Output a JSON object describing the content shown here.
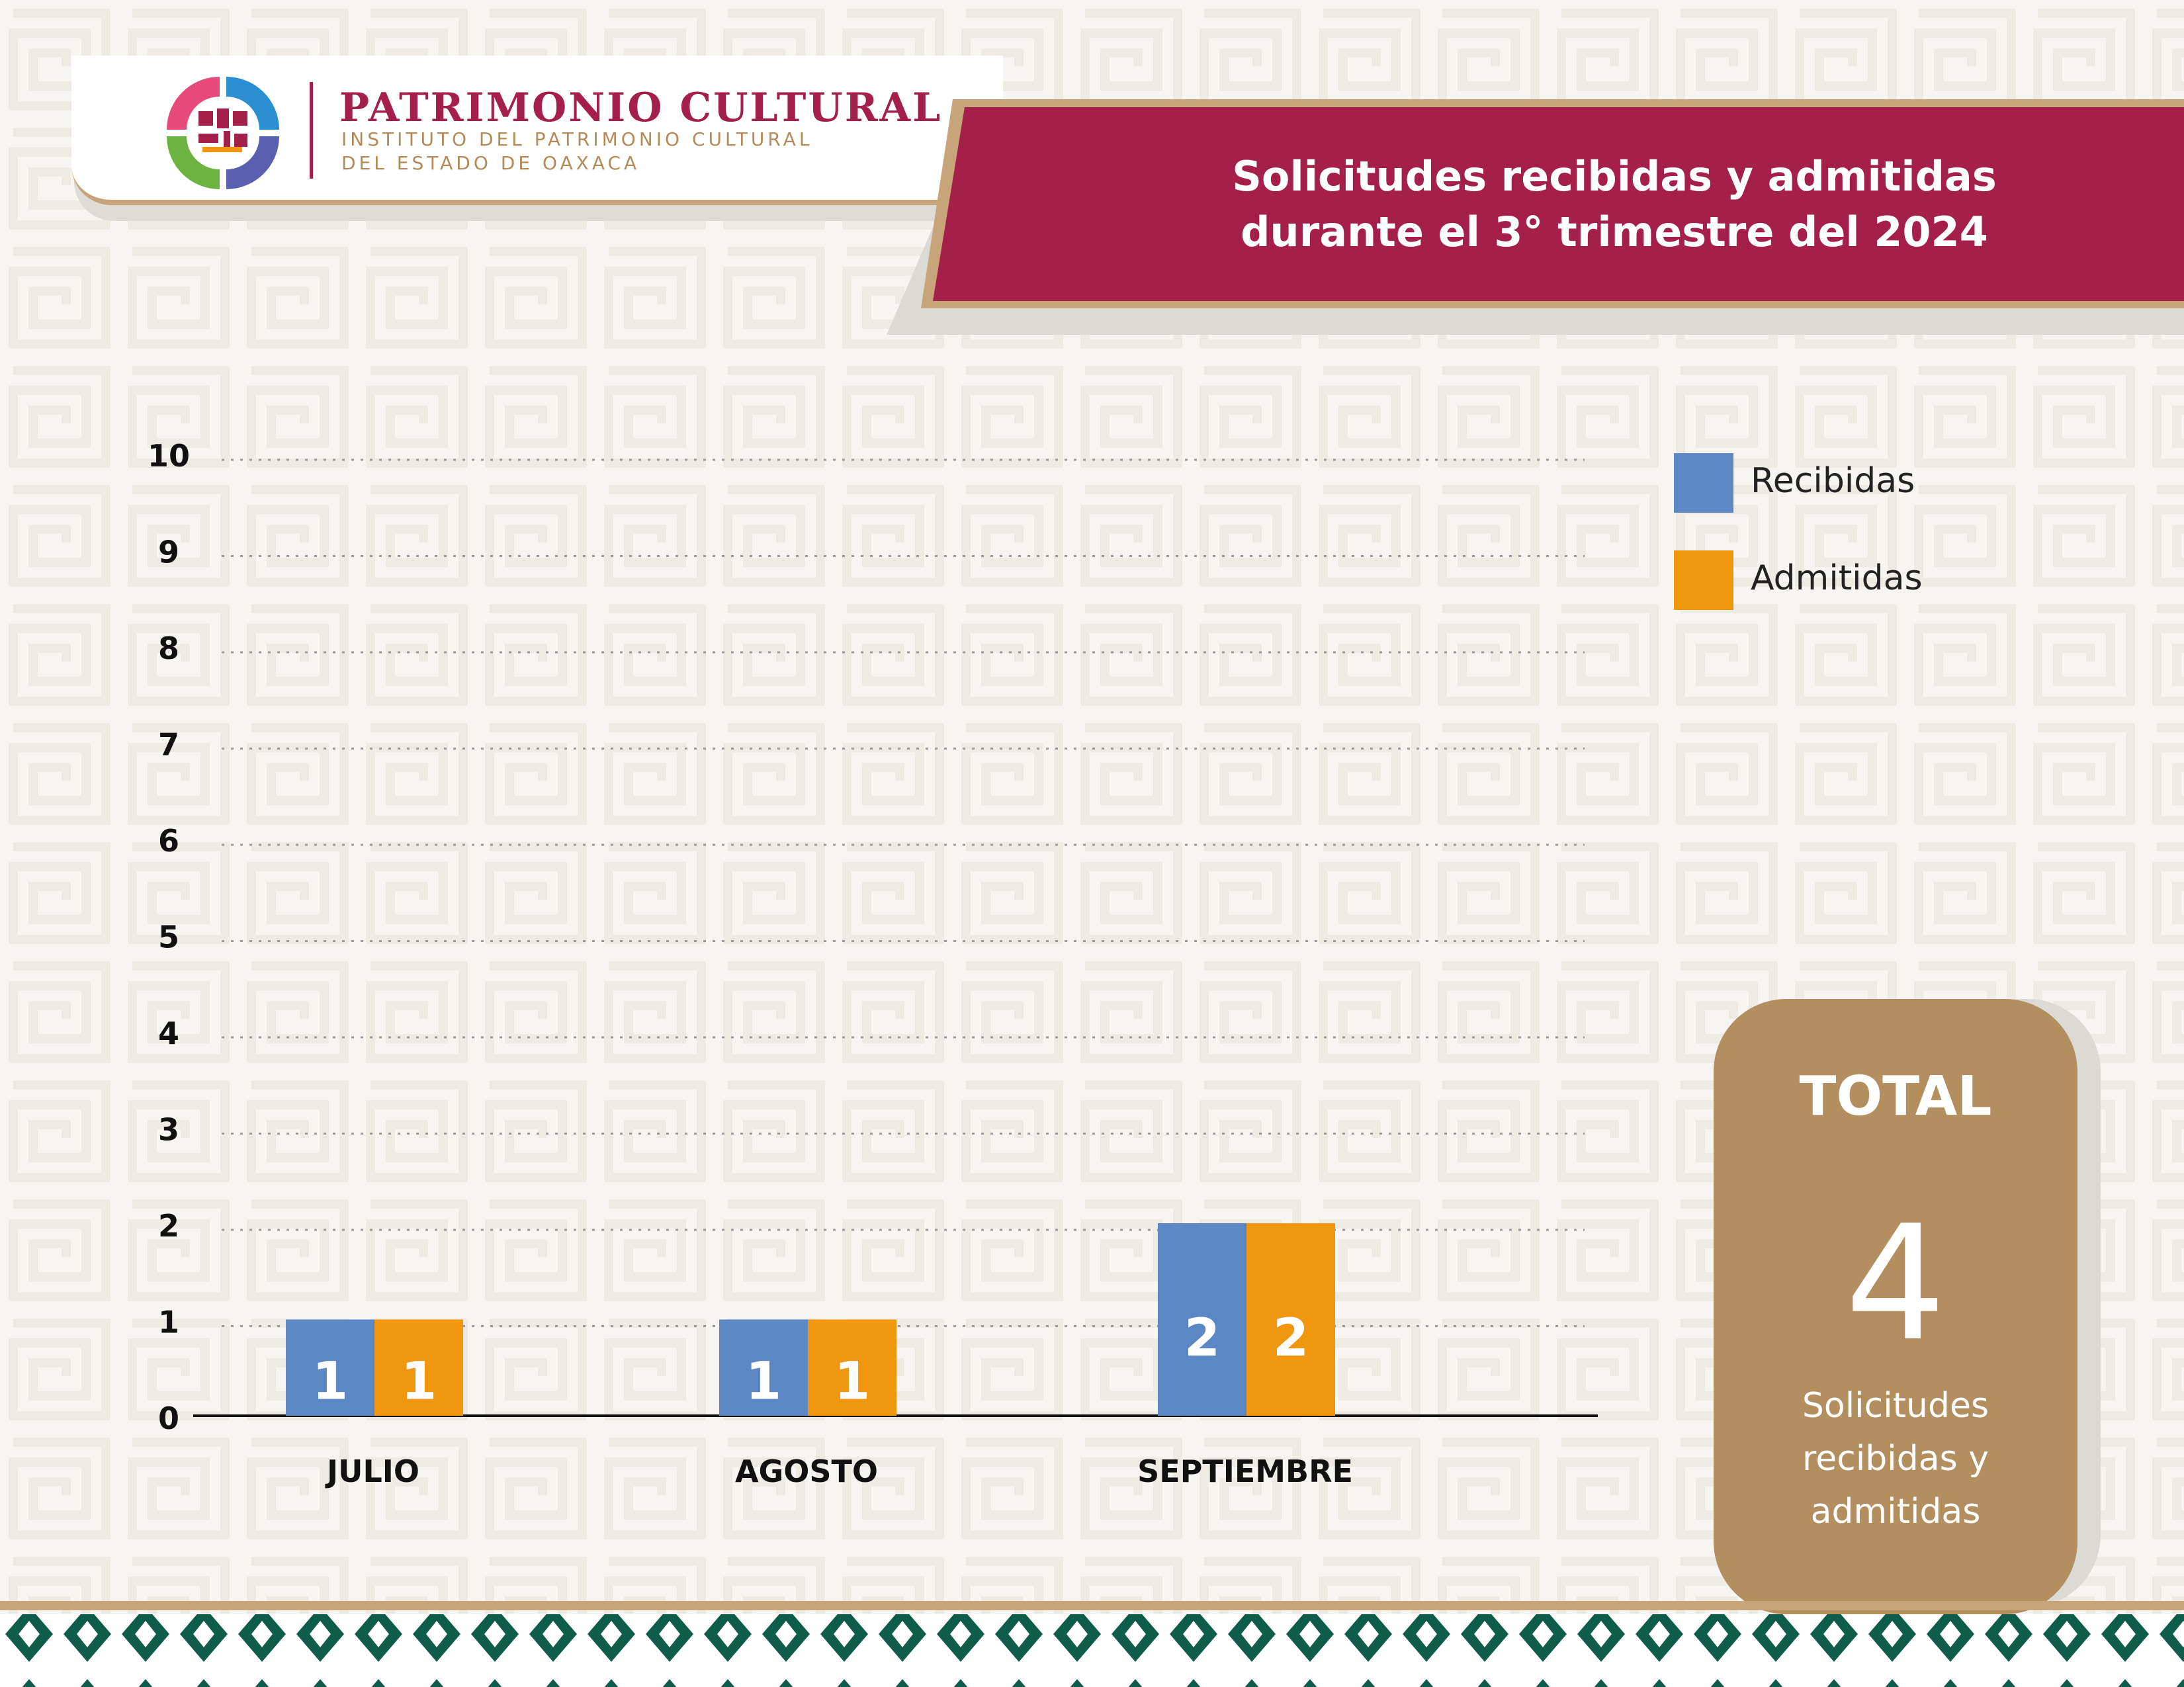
{
  "header": {
    "logo": {
      "title": "PATRIMONIO CULTURAL",
      "subtitle_line1": "INSTITUTO DEL PATRIMONIO CULTURAL",
      "subtitle_line2": "DEL ESTADO DE OAXACA",
      "icon": "patrimonio-cultural-emblem"
    },
    "banner": {
      "title_line1": "Solicitudes recibidas y admitidas",
      "title_line2": "durante el 3° trimestre del 2024"
    }
  },
  "colors": {
    "recibidas": "#5b87c5",
    "admitidas": "#f0960f",
    "banner": "#a41f4a",
    "accent_gold": "#c8a47a",
    "total_card": "#b38e5f",
    "footer_green": "#0f5c4b"
  },
  "chart_data": {
    "type": "bar",
    "categories": [
      "JULIO",
      "AGOSTO",
      "SEPTIEMBRE"
    ],
    "series": [
      {
        "name": "Recibidas",
        "values": [
          1,
          1,
          2
        ]
      },
      {
        "name": "Admitidas",
        "values": [
          1,
          1,
          2
        ]
      }
    ],
    "ylim": [
      0,
      10
    ],
    "yticks": [
      "0",
      "1",
      "2",
      "3",
      "4",
      "5",
      "6",
      "7",
      "8",
      "9",
      "10"
    ],
    "grid": true,
    "grid_style": "dotted",
    "data_labels": true,
    "legend_position": "top-right"
  },
  "legend": {
    "items": [
      {
        "label": "Recibidas"
      },
      {
        "label": "Admitidas"
      }
    ]
  },
  "total": {
    "label": "TOTAL",
    "value": "4",
    "description": "Solicitudes recibidas y admitidas"
  }
}
